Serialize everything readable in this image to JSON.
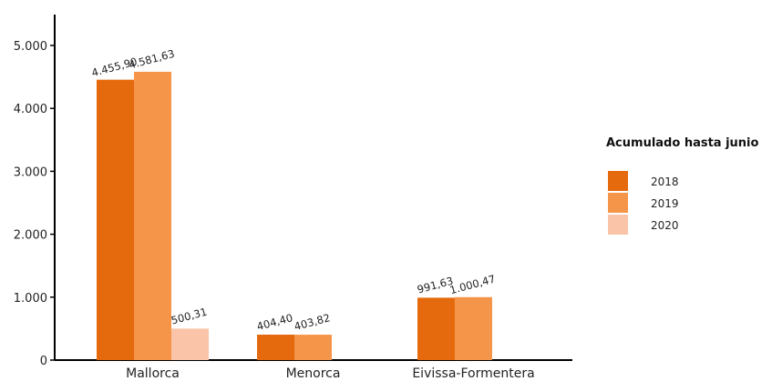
{
  "chart_data": {
    "type": "bar",
    "categories": [
      "Mallorca",
      "Menorca",
      "Eivissa-Formentera"
    ],
    "series": [
      {
        "name": "2018",
        "color": "#e56a0e",
        "values": [
          4455.9,
          404.4,
          991.63
        ],
        "labels": [
          "4.455,90",
          "404,40",
          "991,63"
        ]
      },
      {
        "name": "2019",
        "color": "#f5954a",
        "values": [
          4581.63,
          403.82,
          1000.47
        ],
        "labels": [
          "4.581,63",
          "403,82",
          "1.000,47"
        ]
      },
      {
        "name": "2020",
        "color": "#f9c4a7",
        "values": [
          500.31,
          null,
          null
        ],
        "labels": [
          "500,31",
          null,
          null
        ]
      }
    ],
    "yticks": [
      0,
      1000,
      2000,
      3000,
      4000,
      5000
    ],
    "ytick_labels": [
      "0",
      "1.000",
      "2.000",
      "3.000",
      "4.000",
      "5.000"
    ],
    "ylim": [
      0,
      5000
    ],
    "legend_title": "Acumulado hasta junio",
    "legend_position": "right",
    "grid": false
  }
}
